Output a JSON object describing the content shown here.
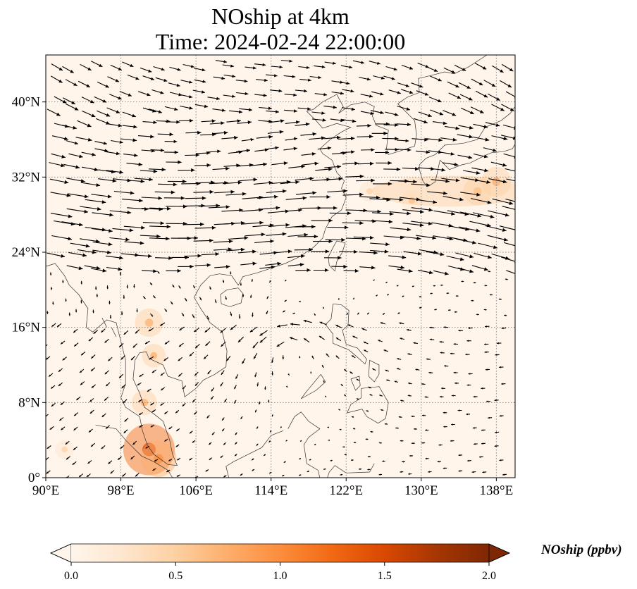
{
  "title": {
    "line1": "NOship at 4km",
    "line2": "Time: 2024-02-24 22:00:00"
  },
  "map": {
    "lon_range": [
      90,
      140
    ],
    "lat_range": [
      0,
      45
    ],
    "lon_ticks": [
      {
        "value": 90,
        "label": "90°E"
      },
      {
        "value": 98,
        "label": "98°E"
      },
      {
        "value": 106,
        "label": "106°E"
      },
      {
        "value": 114,
        "label": "114°E"
      },
      {
        "value": 122,
        "label": "122°E"
      },
      {
        "value": 130,
        "label": "130°E"
      },
      {
        "value": 138,
        "label": "138°E"
      }
    ],
    "lat_ticks": [
      {
        "value": 0,
        "label": "0°"
      },
      {
        "value": 8,
        "label": "8°N"
      },
      {
        "value": 16,
        "label": "16°N"
      },
      {
        "value": 24,
        "label": "24°N"
      },
      {
        "value": 32,
        "label": "32°N"
      },
      {
        "value": 40,
        "label": "40°N"
      }
    ],
    "gridlines": true,
    "colors": {
      "background": "#fff5eb",
      "coastline": "#333333",
      "arrow": "#000000",
      "gridline": "#888888"
    },
    "noship_hotspots": [
      {
        "lon": 136,
        "lat": 30.5,
        "value": 0.55
      },
      {
        "lon": 138,
        "lat": 31.5,
        "value": 0.6
      },
      {
        "lon": 129,
        "lat": 29.5,
        "value": 0.35
      },
      {
        "lon": 124.5,
        "lat": 30.5,
        "value": 0.3
      },
      {
        "lon": 101,
        "lat": 16.5,
        "value": 0.55
      },
      {
        "lon": 101.5,
        "lat": 13,
        "value": 0.4
      },
      {
        "lon": 100.5,
        "lat": 8,
        "value": 0.45
      },
      {
        "lon": 101,
        "lat": 3,
        "value": 1.3
      },
      {
        "lon": 102,
        "lat": 2,
        "value": 0.8
      },
      {
        "lon": 92,
        "lat": 3,
        "value": 0.25
      }
    ]
  },
  "colorbar": {
    "title": "NOship (ppbv)",
    "min": 0.0,
    "max": 2.0,
    "extend": "both",
    "colormap": "OrRd",
    "stops": [
      "#fff5eb",
      "#fee6ce",
      "#fdd0a2",
      "#fdae6b",
      "#fd8d3c",
      "#f16913",
      "#d94801",
      "#a63603",
      "#7f2704"
    ],
    "ticks": [
      {
        "value": 0.0,
        "label": "0.0"
      },
      {
        "value": 0.5,
        "label": "0.5"
      },
      {
        "value": 1.0,
        "label": "1.0"
      },
      {
        "value": 1.5,
        "label": "1.5"
      },
      {
        "value": 2.0,
        "label": "2.0"
      }
    ]
  }
}
